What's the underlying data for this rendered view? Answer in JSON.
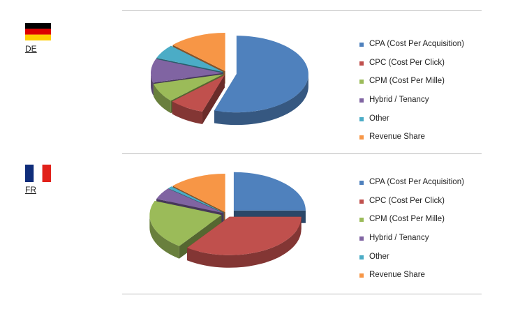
{
  "sections": [
    {
      "country_code": "DE",
      "flag": "germany-flag",
      "flag_colors": [
        "#000000",
        "#dd0000",
        "#ffce00"
      ]
    },
    {
      "country_code": "FR",
      "flag": "france-flag",
      "flag_colors": [
        "#0f2d7a",
        "#ffffff",
        "#e1211a"
      ]
    }
  ],
  "chart_data": [
    {
      "type": "pie",
      "style": "exploded-3d",
      "categories": [
        "CPA (Cost Per Acquisition)",
        "CPC (Cost Per Click)",
        "CPM (Cost Per Mille)",
        "Hybrid / Tenancy",
        "Other",
        "Revenue Share"
      ],
      "values": [
        55,
        8,
        8,
        10,
        6,
        13
      ],
      "colors": [
        "#4f81bd",
        "#c0504d",
        "#9bbb59",
        "#8064a2",
        "#4bacc6",
        "#f79646"
      ],
      "legend": "right"
    },
    {
      "type": "pie",
      "style": "exploded-3d",
      "categories": [
        "CPA (Cost Per Acquisition)",
        "CPC (Cost Per Click)",
        "CPM (Cost Per Mille)",
        "Hybrid / Tenancy",
        "Other",
        "Revenue Share"
      ],
      "values": [
        25,
        35,
        21,
        5,
        1,
        13
      ],
      "colors": [
        "#4f81bd",
        "#c0504d",
        "#9bbb59",
        "#8064a2",
        "#4bacc6",
        "#f79646"
      ],
      "legend": "right"
    }
  ]
}
